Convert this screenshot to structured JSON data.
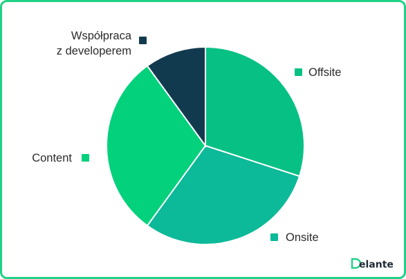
{
  "chart_data": {
    "type": "pie",
    "title": "",
    "slices": [
      {
        "label": "Offsite",
        "value": 30,
        "color": "#07c184"
      },
      {
        "label": "Onsite",
        "value": 30,
        "color": "#0cb998"
      },
      {
        "label": "Content",
        "value": 30,
        "color": "#03d17c"
      },
      {
        "label": "Współpraca z developerem",
        "label_lines": [
          "Współpraca",
          "z developerem"
        ],
        "value": 10,
        "color": "#123a4f"
      }
    ],
    "legend": "labels-beside-slices"
  },
  "brand": {
    "name": "Delante",
    "logo_color": "#1e2a36",
    "accent": "#1fd286"
  }
}
